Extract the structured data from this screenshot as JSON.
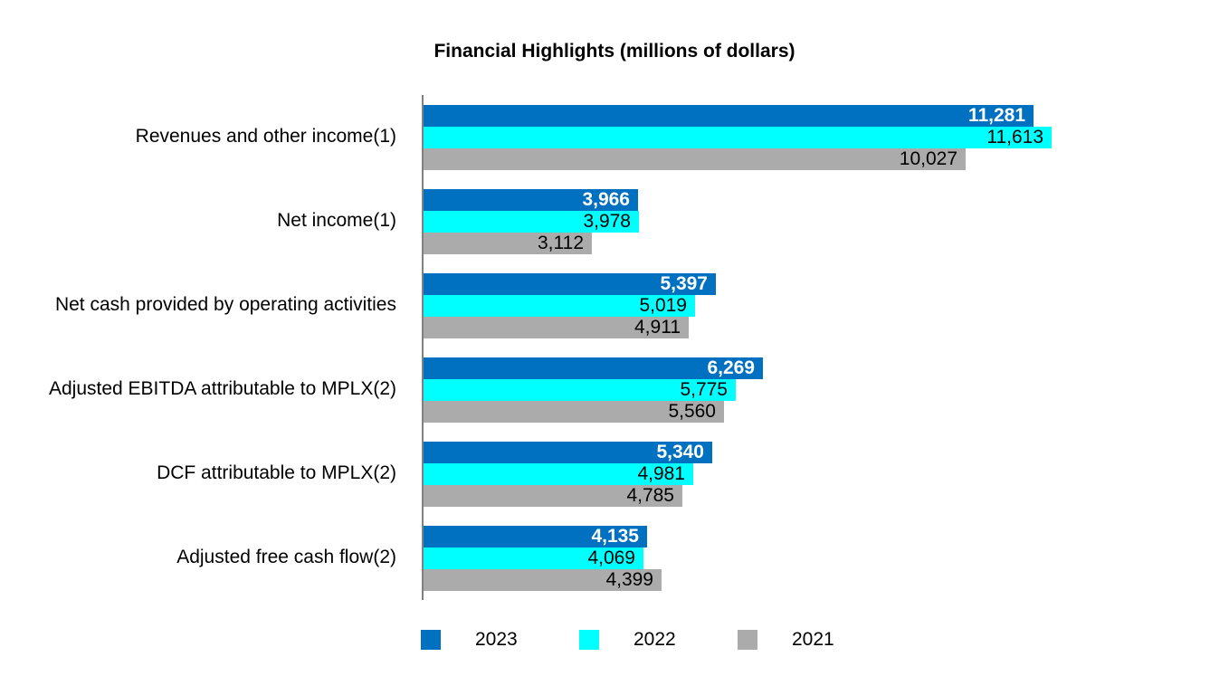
{
  "title": "Financial Highlights (millions of dollars)",
  "chart_data": {
    "type": "bar",
    "orientation": "horizontal",
    "title": "Financial Highlights (millions of dollars)",
    "categories": [
      "Revenues and other income(1)",
      "Net income(1)",
      "Net cash provided by operating activities",
      "Adjusted EBITDA attributable to MPLX(2)",
      "DCF attributable to MPLX(2)",
      "Adjusted free cash flow(2)"
    ],
    "series": [
      {
        "name": "2023",
        "color": "#0070C0",
        "value_label_style": "light",
        "values": [
          11281,
          3966,
          5397,
          6269,
          5340,
          4135
        ]
      },
      {
        "name": "2022",
        "color": "#00FFFF",
        "value_label_style": "dark",
        "values": [
          11613,
          3978,
          5019,
          5775,
          4981,
          4069
        ]
      },
      {
        "name": "2021",
        "color": "#ABABAB",
        "value_label_style": "dark",
        "values": [
          10027,
          3112,
          4911,
          5560,
          4785,
          4399
        ]
      }
    ],
    "xlim": [
      0,
      11613
    ],
    "grid": false,
    "value_labels": "inside bar end, thousands separators",
    "value_label_colors": {
      "light": "#FFFFFF",
      "dark": "#000000"
    },
    "legend_position": "bottom",
    "axis_line_color": "#808080",
    "background": "#FFFFFF"
  }
}
